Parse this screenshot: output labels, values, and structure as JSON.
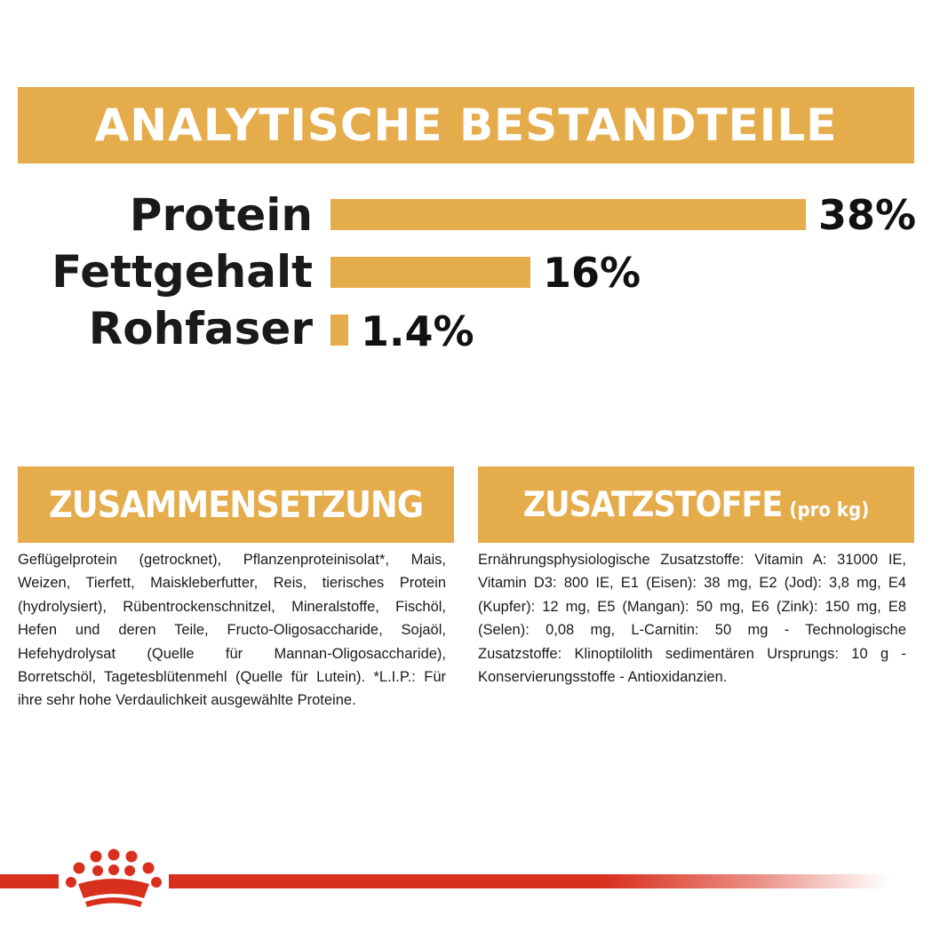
{
  "analysis": {
    "title": "ANALYTISCHE BESTANDTEILE",
    "nutrients": [
      {
        "label": "Protein",
        "value_text": "38%",
        "value": 38
      },
      {
        "label": "Fettgehalt",
        "value_text": "16%",
        "value": 16
      },
      {
        "label": "Rohfaser",
        "value_text": "1.4%",
        "value": 1.4
      }
    ]
  },
  "composition": {
    "title": "ZUSAMMENSETZUNG",
    "text": "Geflügelprotein (getrocknet), Pflanzenproteinisolat*, Mais, Weizen, Tierfett, Maiskleberfutter, Reis, tierisches Protein (hydrolysiert), Rübentrockenschnitzel, Mineralstoffe, Fischöl, Hefen und deren Teile, Fructo-Oligosaccharide, Sojaöl, Hefehydrolysat (Quelle für Mannan-Oligosaccharide), Borretschöl, Tagetesblütenmehl (Quelle für Lutein). *L.I.P.: Für ihre sehr hohe Verdaulichkeit ausgewählte Proteine."
  },
  "additives": {
    "title": "ZUSATZSTOFFE",
    "title_suffix": "(pro kg)",
    "text": "Ernährungsphysiologische Zusatzstoffe: Vitamin A: 31000 IE, Vitamin D3: 800 IE, E1 (Eisen): 38 mg, E2 (Jod): 3,8 mg, E4 (Kupfer): 12 mg, E5 (Mangan): 50 mg, E6 (Zink): 150 mg, E8 (Selen): 0,08 mg, L-Carnitin: 50 mg - Technologische Zusatzstoffe: Klinoptilolith sedimentären Ursprungs: 10 g - Konservierungsstoffe - Antioxidanzien."
  },
  "colors": {
    "accent": "#e5ac4c",
    "brand_red": "#d9301e",
    "text": "#1a1a1a"
  },
  "icons": {
    "logo": "crown-logo-icon"
  }
}
